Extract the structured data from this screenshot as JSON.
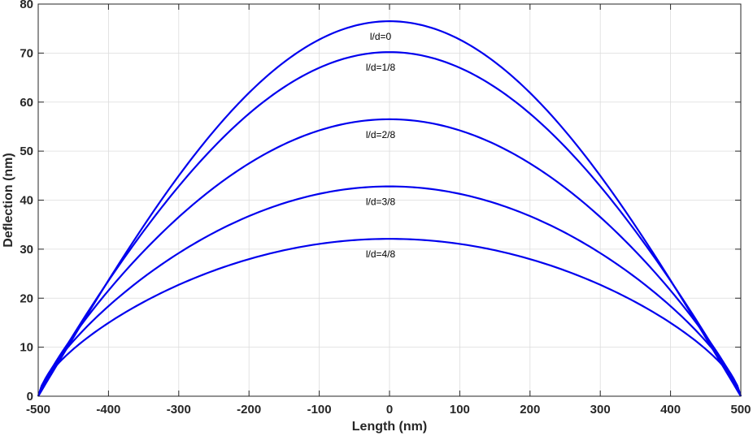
{
  "chart_data": {
    "type": "line",
    "xlabel": "Length (nm)",
    "ylabel": "Deflection (nm)",
    "xlim": [
      -500,
      500
    ],
    "ylim": [
      0,
      80
    ],
    "xticks": [
      -500,
      -400,
      -300,
      -200,
      -100,
      0,
      100,
      200,
      300,
      400,
      500
    ],
    "yticks": [
      0,
      10,
      20,
      30,
      40,
      50,
      60,
      70,
      80
    ],
    "grid": true,
    "line_color": "#0000ee",
    "series": [
      {
        "name": "l/d=0",
        "peak": 76.5,
        "exponent": 1.0
      },
      {
        "name": "l/d=1/8",
        "peak": 70.2,
        "exponent": 0.93
      },
      {
        "name": "l/d=2/8",
        "peak": 56.5,
        "exponent": 0.82
      },
      {
        "name": "l/d=3/8",
        "peak": 42.8,
        "exponent": 0.72
      },
      {
        "name": "l/d=4/8",
        "peak": 32.1,
        "exponent": 0.65
      }
    ]
  }
}
